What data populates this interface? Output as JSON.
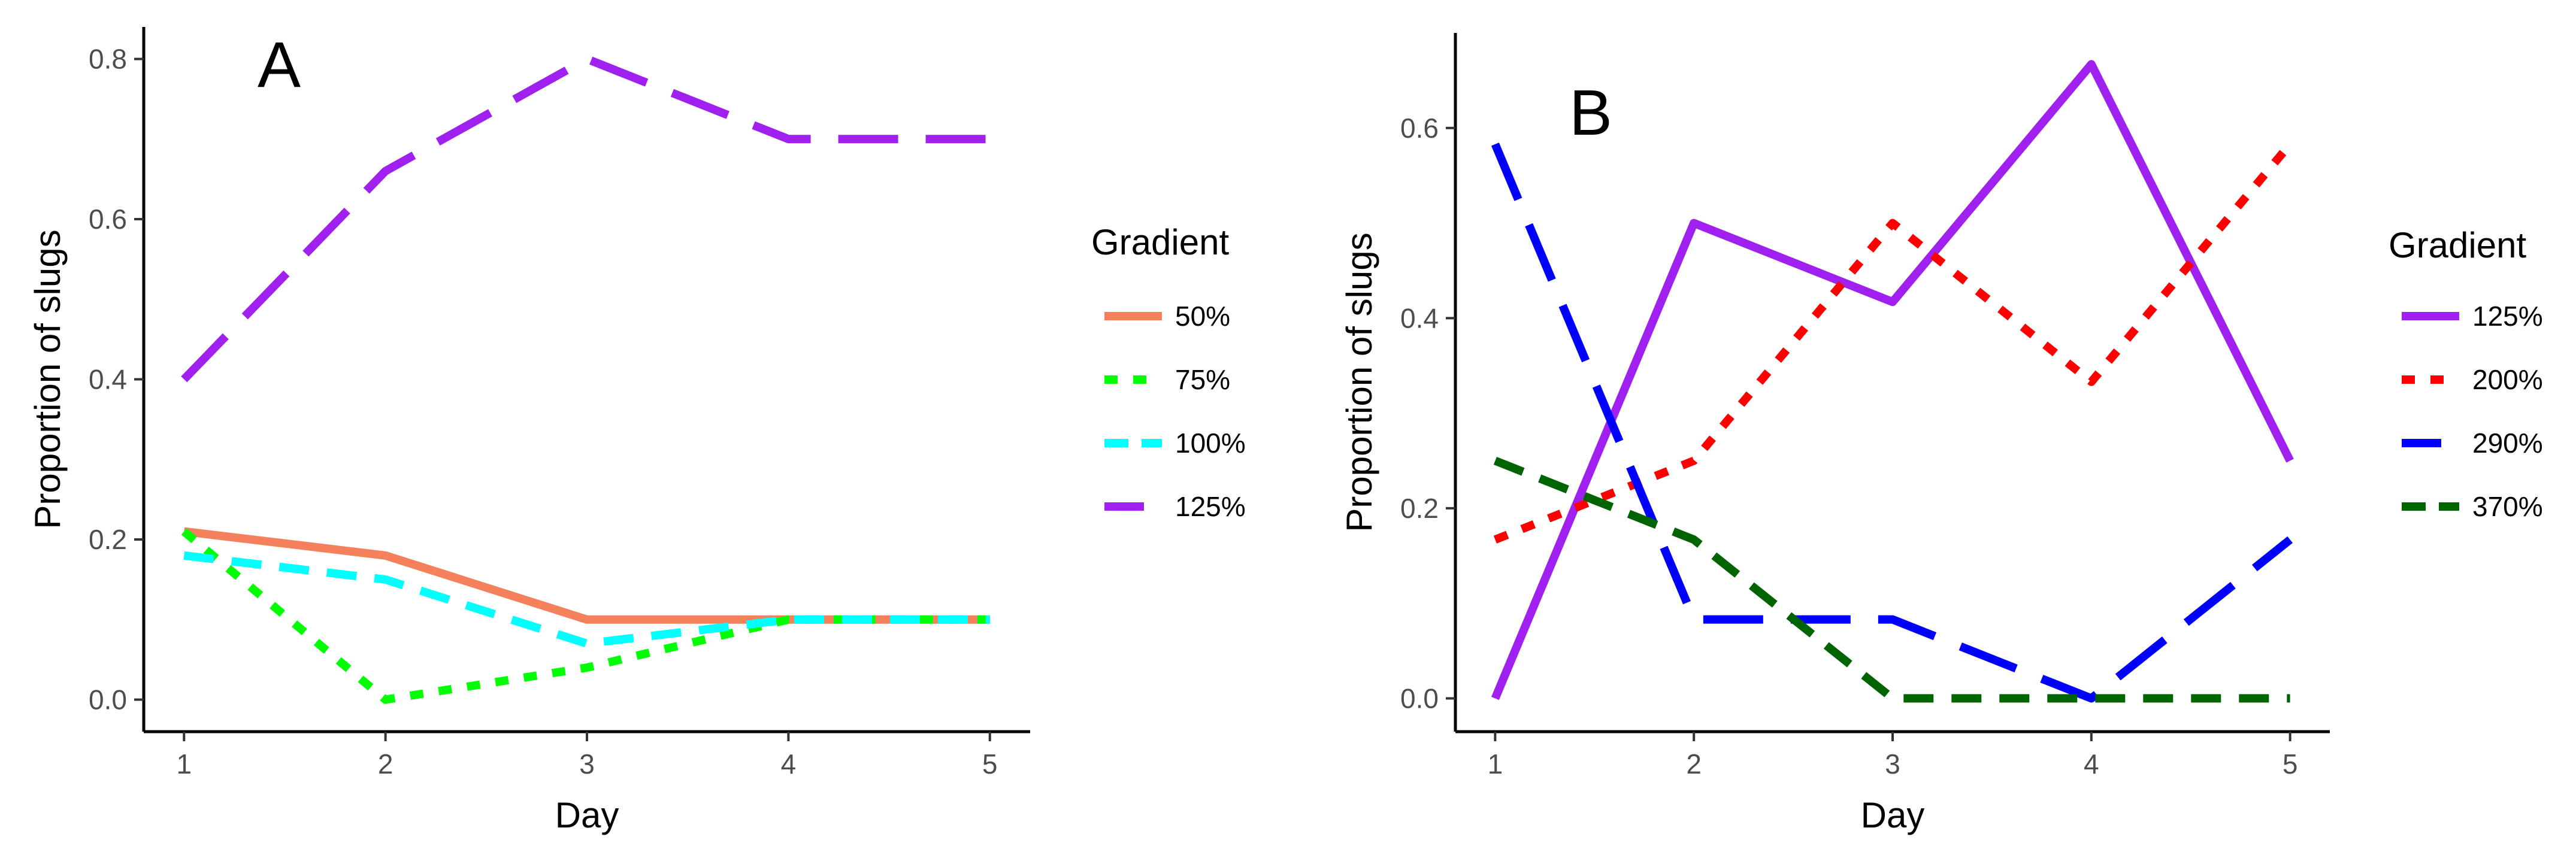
{
  "chart_data": [
    {
      "type": "line",
      "panel_label": "A",
      "xlabel": "Day",
      "ylabel": "Proportion of slugs",
      "x": [
        1,
        2,
        3,
        4,
        5
      ],
      "x_ticks": [
        "1",
        "2",
        "3",
        "4",
        "5"
      ],
      "xlim": [
        0.8,
        5.2
      ],
      "y_ticks": [
        0,
        0.2,
        0.4,
        0.6,
        0.8
      ],
      "y_tick_labels": [
        "0.0",
        "0.2",
        "0.4",
        "0.6",
        "0.8"
      ],
      "ylim": [
        -0.04,
        0.84
      ],
      "grid": false,
      "legend": {
        "title": "Gradient",
        "placement": "right"
      },
      "series": [
        {
          "name": "50%",
          "color": "#F4815C",
          "dash": "solid",
          "values": [
            0.21,
            0.18,
            0.1,
            0.1,
            0.1
          ]
        },
        {
          "name": "75%",
          "color": "#00FF00",
          "dash": "dotted",
          "values": [
            0.21,
            0.0,
            0.04,
            0.1,
            0.1
          ]
        },
        {
          "name": "100%",
          "color": "#00FFFF",
          "dash": "dashed",
          "values": [
            0.18,
            0.15,
            0.07,
            0.1,
            0.1
          ]
        },
        {
          "name": "125%",
          "color": "#A020F0",
          "dash": "longdash",
          "values": [
            0.4,
            0.66,
            0.8,
            0.7,
            0.7
          ]
        }
      ]
    },
    {
      "type": "line",
      "panel_label": "B",
      "xlabel": "Day",
      "ylabel": "Proportion of slugs",
      "x": [
        1,
        2,
        3,
        4,
        5
      ],
      "x_ticks": [
        "1",
        "2",
        "3",
        "4",
        "5"
      ],
      "xlim": [
        0.8,
        5.2
      ],
      "y_ticks": [
        0,
        0.2,
        0.4,
        0.6
      ],
      "y_tick_labels": [
        "0.0",
        "0.2",
        "0.4",
        "0.6"
      ],
      "ylim": [
        -0.035,
        0.7
      ],
      "grid": false,
      "legend": {
        "title": "Gradient",
        "placement": "right"
      },
      "series": [
        {
          "name": "125%",
          "color": "#A020F0",
          "dash": "solid",
          "values": [
            0.0,
            0.5,
            0.417,
            0.667,
            0.25
          ]
        },
        {
          "name": "200%",
          "color": "#FF0000",
          "dash": "dotted",
          "values": [
            0.167,
            0.25,
            0.5,
            0.333,
            0.583
          ]
        },
        {
          "name": "290%",
          "color": "#0000FF",
          "dash": "longdash",
          "values": [
            0.583,
            0.083,
            0.083,
            0.0,
            0.167
          ]
        },
        {
          "name": "370%",
          "color": "#006400",
          "dash": "dashed",
          "values": [
            0.25,
            0.167,
            0.0,
            0.0,
            0.0
          ]
        }
      ]
    }
  ]
}
